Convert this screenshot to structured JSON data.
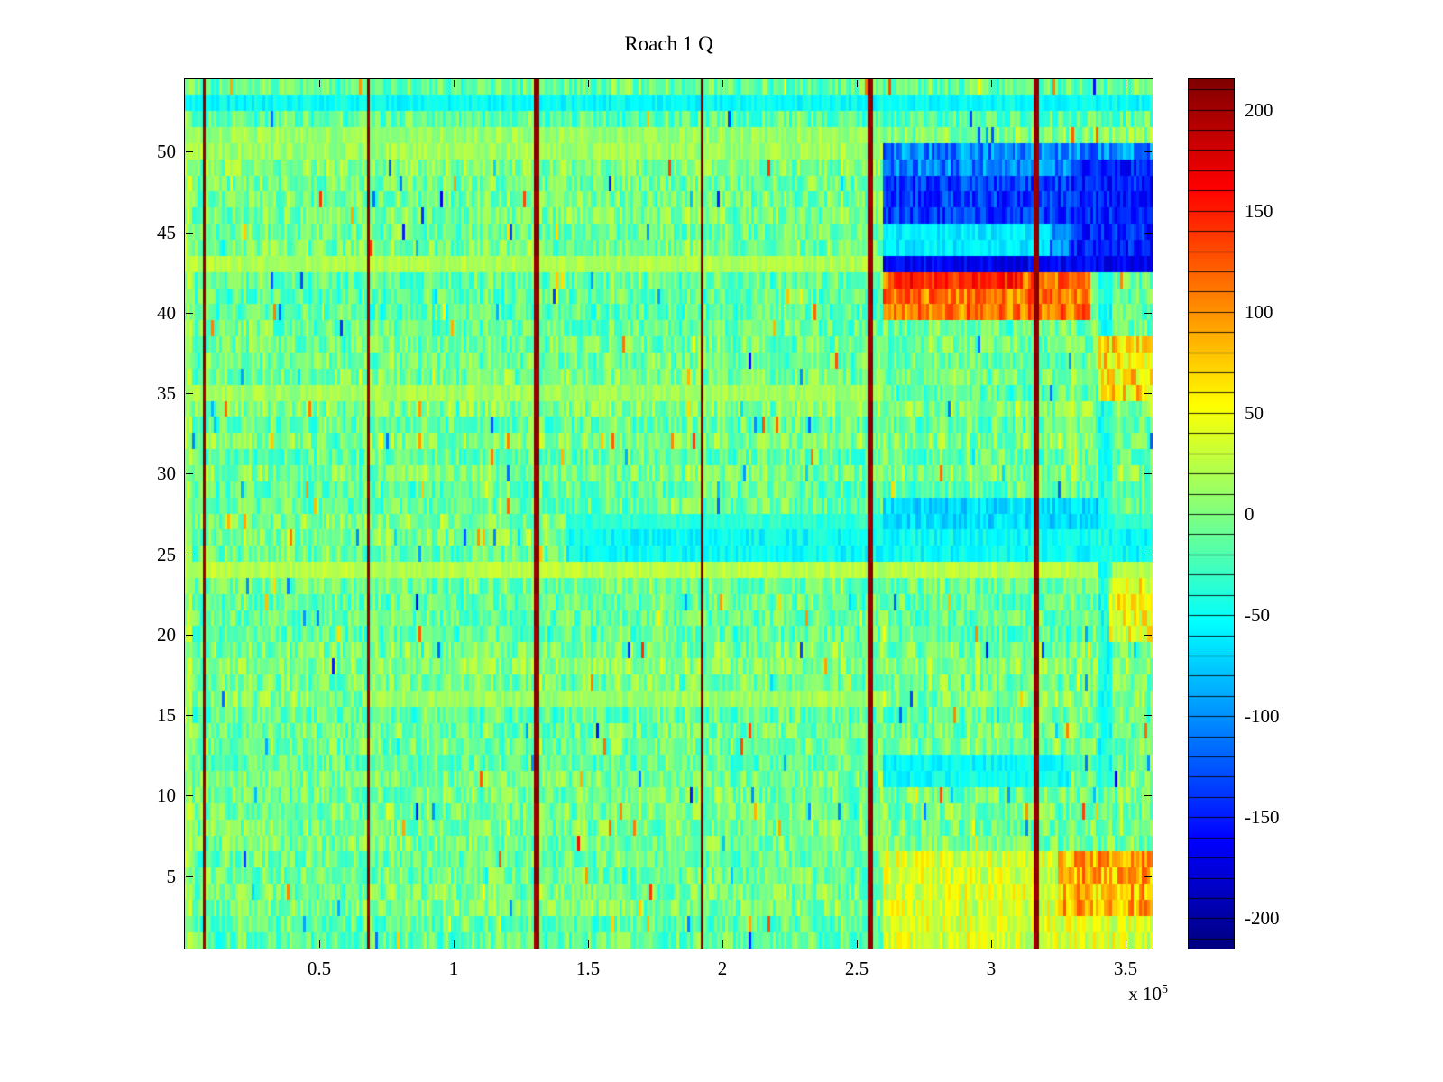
{
  "title": "Roach 1 Q",
  "chart_data": {
    "type": "heatmap",
    "title": "Roach 1 Q",
    "colormap": "jet",
    "xlim": [
      0,
      3.6
    ],
    "xticks": [
      0.5,
      1,
      1.5,
      2,
      2.5,
      3,
      3.5
    ],
    "xtick_labels": [
      "0.5",
      "1",
      "1.5",
      "2",
      "2.5",
      "3",
      "3.5"
    ],
    "x_offset_base": "x 10",
    "x_offset_exp": "5",
    "ylim": [
      0.5,
      54.5
    ],
    "yticks": [
      5,
      10,
      15,
      20,
      25,
      30,
      35,
      40,
      45,
      50
    ],
    "colorbar": {
      "min": -215,
      "max": 215,
      "ticks": [
        -200,
        -150,
        -100,
        -50,
        0,
        50,
        100,
        150,
        200
      ],
      "minor_tick_step": 10
    },
    "grid": {
      "ncols": 360,
      "nrows": 54,
      "seed": 1337,
      "base": -6,
      "noise": 34,
      "row_bias": 11,
      "col_bias": 7,
      "spike_prob": 0.009,
      "spike_min": 55,
      "spike_max": 130
    },
    "vertical_lines": {
      "x": [
        0.074,
        0.688,
        1.308,
        1.926,
        2.55,
        3.17
      ],
      "value": 208,
      "jitter": 10,
      "half_width": 0.007
    },
    "features": [
      {
        "name": "left-edge-warm",
        "x0": 0.0,
        "x1": 0.03,
        "y0": 0.5,
        "y1": 54.5,
        "value": 15,
        "jitter": 25
      },
      {
        "name": "warm-rows-50-51-left",
        "x0": 0.0,
        "x1": 2.6,
        "y0": 49.6,
        "y1": 51.4,
        "value": 12,
        "jitter": 20
      },
      {
        "name": "cyan-row-top",
        "x0": 0.0,
        "x1": 3.6,
        "y0": 52.4,
        "y1": 53.4,
        "value": -52,
        "jitter": 16
      },
      {
        "name": "warm-row-43-left",
        "x0": 0.0,
        "x1": 2.6,
        "y0": 42.5,
        "y1": 43.5,
        "value": 20,
        "jitter": 14
      },
      {
        "name": "warm-row-35-left",
        "x0": 0.0,
        "x1": 2.6,
        "y0": 34.6,
        "y1": 35.4,
        "value": 14,
        "jitter": 16
      },
      {
        "name": "warm-row-16-left",
        "x0": 0.7,
        "x1": 2.6,
        "y0": 15.6,
        "y1": 16.4,
        "value": 12,
        "jitter": 16
      },
      {
        "name": "warm-row-24",
        "x0": 0.0,
        "x1": 3.6,
        "y0": 23.6,
        "y1": 24.4,
        "value": 24,
        "jitter": 14
      },
      {
        "name": "cyan-band-26",
        "x0": 1.42,
        "x1": 3.6,
        "y0": 24.6,
        "y1": 26.4,
        "value": -52,
        "jitter": 18
      },
      {
        "name": "cyan-band-27",
        "x0": 1.42,
        "x1": 3.6,
        "y0": 26.6,
        "y1": 27.4,
        "value": -36,
        "jitter": 14
      },
      {
        "name": "blue-right-27-28",
        "x0": 2.6,
        "x1": 3.45,
        "y0": 26.6,
        "y1": 28.4,
        "value": -68,
        "jitter": 22
      },
      {
        "name": "cyan-right-12",
        "x0": 2.6,
        "x1": 3.3,
        "y0": 10.6,
        "y1": 12.4,
        "value": -52,
        "jitter": 18
      },
      {
        "name": "cyan-streak-vertical",
        "x0": 3.4,
        "x1": 3.45,
        "y0": 10.6,
        "y1": 42.4,
        "value": -45,
        "jitter": 22
      },
      {
        "name": "orange-right-37",
        "x0": 3.4,
        "x1": 3.6,
        "y0": 34.6,
        "y1": 38.4,
        "value": 62,
        "jitter": 45
      },
      {
        "name": "orange-right-21",
        "x0": 3.44,
        "x1": 3.6,
        "y0": 19.6,
        "y1": 23.4,
        "value": 48,
        "jitter": 40
      },
      {
        "name": "blue-block",
        "x0": 2.6,
        "x1": 3.6,
        "y0": 42.6,
        "y1": 50.6,
        "value": -105,
        "jitter": 38
      },
      {
        "name": "blue-block-core",
        "x0": 2.6,
        "x1": 3.6,
        "y0": 45.6,
        "y1": 48.6,
        "value": -138,
        "jitter": 30
      },
      {
        "name": "blue-block-light-band",
        "x0": 2.6,
        "x1": 3.22,
        "y0": 43.6,
        "y1": 45.4,
        "value": -62,
        "jitter": 18
      },
      {
        "name": "blue-block-right-deep",
        "x0": 3.3,
        "x1": 3.6,
        "y0": 42.6,
        "y1": 49.6,
        "value": -148,
        "jitter": 28
      },
      {
        "name": "blue-edge-row",
        "x0": 2.6,
        "x1": 3.6,
        "y0": 42.5,
        "y1": 43.4,
        "value": -165,
        "jitter": 22
      },
      {
        "name": "red-band",
        "x0": 2.6,
        "x1": 3.37,
        "y0": 39.2,
        "y1": 42.4,
        "value": 112,
        "jitter": 38
      },
      {
        "name": "red-band-hot",
        "x0": 2.62,
        "x1": 3.12,
        "y0": 41.5,
        "y1": 42.4,
        "value": 148,
        "jitter": 28
      },
      {
        "name": "orange-bottom-right",
        "x0": 2.6,
        "x1": 3.6,
        "y0": 0.5,
        "y1": 6.4,
        "value": 38,
        "jitter": 32
      },
      {
        "name": "orange-bottom-right-hot",
        "x0": 3.26,
        "x1": 3.6,
        "y0": 2.6,
        "y1": 6.4,
        "value": 85,
        "jitter": 45
      }
    ]
  }
}
